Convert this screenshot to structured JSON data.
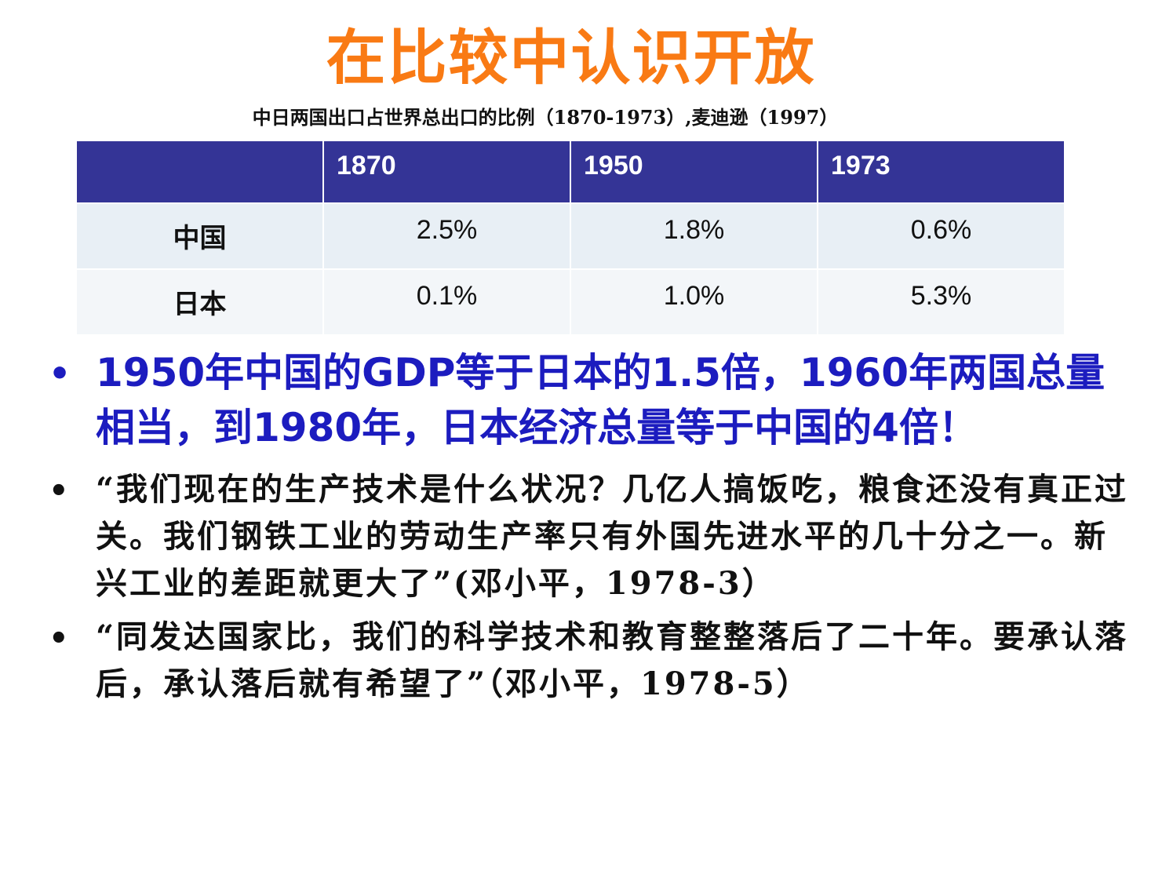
{
  "title": "在比较中认识开放",
  "table_caption": "中日两国出口占世界总出口的比例（1870-1973）,麦迪逊（1997）",
  "table": {
    "headers": [
      "",
      "1870",
      "1950",
      "1973"
    ],
    "rows": [
      {
        "label": "中国",
        "values": [
          "2.5%",
          "1.8%",
          "0.6%"
        ]
      },
      {
        "label": "日本",
        "values": [
          "0.1%",
          "1.0%",
          "5.3%"
        ]
      }
    ]
  },
  "bullets": [
    {
      "bullet": "•",
      "text": "1950年中国的GDP等于日本的1.5倍，1960年两国总量相当，到1980年，日本经济总量等于中国的4倍！",
      "color": "#1c1cbf"
    },
    {
      "bullet": "•",
      "text": "“我们现在的生产技术是什么状况？几亿人搞饭吃，粮食还没有真正过关。我们钢铁工业的劳动生产率只有外国先进水平的几十分之一。新兴工业的差距就更大了”(邓小平，1978-3）",
      "color": "#111111"
    },
    {
      "bullet": "•",
      "text": "“同发达国家比，我们的科学技术和教育整整落后了二十年。要承认落后，承认落后就有希望了”（邓小平，1978-5）",
      "color": "#111111"
    }
  ],
  "colors": {
    "title": "#f97a14",
    "table_header_bg": "#343496",
    "table_row_odd": "#e8eff5",
    "table_row_even": "#f3f6f9",
    "emphasis_blue": "#1c1cbf"
  }
}
